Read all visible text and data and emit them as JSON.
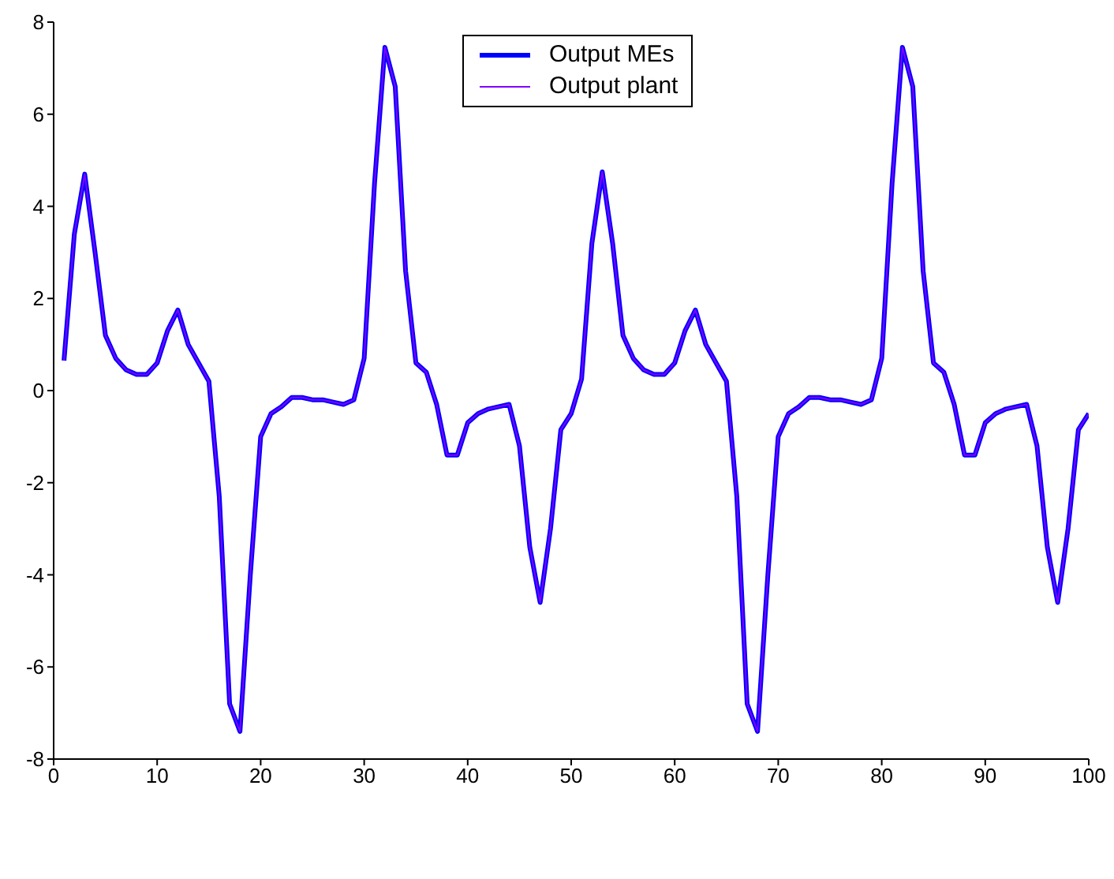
{
  "chart_data": {
    "type": "line",
    "x": [
      1,
      2,
      3,
      4,
      5,
      6,
      7,
      8,
      9,
      10,
      11,
      12,
      13,
      14,
      15,
      16,
      17,
      18,
      19,
      20,
      21,
      22,
      23,
      24,
      25,
      26,
      27,
      28,
      29,
      30,
      31,
      32,
      33,
      34,
      35,
      36,
      37,
      38,
      39,
      40,
      41,
      42,
      43,
      44,
      45,
      46,
      47,
      48,
      49,
      50,
      51,
      52,
      53,
      54,
      55,
      56,
      57,
      58,
      59,
      60,
      61,
      62,
      63,
      64,
      65,
      66,
      67,
      68,
      69,
      70,
      71,
      72,
      73,
      74,
      75,
      76,
      77,
      78,
      79,
      80,
      81,
      82,
      83,
      84,
      85,
      86,
      87,
      88,
      89,
      90,
      91,
      92,
      93,
      94,
      95,
      96,
      97,
      98,
      99,
      100
    ],
    "series": [
      {
        "name": "Output MEs",
        "color": "#0000ff",
        "values": [
          0.65,
          3.4,
          4.7,
          3.0,
          1.2,
          0.7,
          0.45,
          0.35,
          0.35,
          0.6,
          1.3,
          1.75,
          1.0,
          0.6,
          0.2,
          -2.3,
          -6.8,
          -7.4,
          -4.0,
          -1.0,
          -0.5,
          -0.35,
          -0.15,
          -0.15,
          -0.2,
          -0.2,
          -0.25,
          -0.3,
          -0.2,
          0.7,
          4.5,
          7.45,
          6.6,
          2.6,
          0.6,
          0.4,
          -0.3,
          -1.4,
          -1.4,
          -0.7,
          -0.5,
          -0.4,
          -0.35,
          -0.3,
          -1.2,
          -3.4,
          -4.6,
          -3.0,
          -0.85,
          -0.5,
          0.25,
          3.2,
          4.75,
          3.2,
          1.2,
          0.7,
          0.45,
          0.35,
          0.35,
          0.6,
          1.3,
          1.75,
          1.0,
          0.6,
          0.2,
          -2.3,
          -6.8,
          -7.4,
          -4.0,
          -1.0,
          -0.5,
          -0.35,
          -0.15,
          -0.15,
          -0.2,
          -0.2,
          -0.25,
          -0.3,
          -0.2,
          0.7,
          4.5,
          7.45,
          6.6,
          2.6,
          0.6,
          0.4,
          -0.3,
          -1.4,
          -1.4,
          -0.7,
          -0.5,
          -0.4,
          -0.35,
          -0.3,
          -1.2,
          -3.4,
          -4.6,
          -3.0,
          -0.85,
          -0.5
        ]
      },
      {
        "name": "Output plant",
        "color": "#8000ff",
        "values": [
          0.65,
          3.4,
          4.7,
          3.0,
          1.2,
          0.7,
          0.45,
          0.35,
          0.35,
          0.6,
          1.3,
          1.75,
          1.0,
          0.6,
          0.2,
          -2.3,
          -6.8,
          -7.4,
          -4.0,
          -1.0,
          -0.5,
          -0.35,
          -0.15,
          -0.15,
          -0.2,
          -0.2,
          -0.25,
          -0.3,
          -0.2,
          0.7,
          4.5,
          7.45,
          6.6,
          2.6,
          0.6,
          0.4,
          -0.3,
          -1.4,
          -1.4,
          -0.7,
          -0.5,
          -0.4,
          -0.35,
          -0.3,
          -1.2,
          -3.4,
          -4.6,
          -3.0,
          -0.85,
          -0.5,
          0.25,
          3.2,
          4.75,
          3.2,
          1.2,
          0.7,
          0.45,
          0.35,
          0.35,
          0.6,
          1.3,
          1.75,
          1.0,
          0.6,
          0.2,
          -2.3,
          -6.8,
          -7.4,
          -4.0,
          -1.0,
          -0.5,
          -0.35,
          -0.15,
          -0.15,
          -0.2,
          -0.2,
          -0.25,
          -0.3,
          -0.2,
          0.7,
          4.5,
          7.45,
          6.6,
          2.6,
          0.6,
          0.4,
          -0.3,
          -1.4,
          -1.4,
          -0.7,
          -0.5,
          -0.4,
          -0.35,
          -0.3,
          -1.2,
          -3.4,
          -4.6,
          -3.0,
          -0.85,
          -0.5
        ]
      }
    ],
    "xlim": [
      0,
      100
    ],
    "xticks": [
      0,
      10,
      20,
      30,
      40,
      50,
      60,
      70,
      80,
      90,
      100
    ],
    "ylim": [
      -8,
      8
    ],
    "yticks": [
      -8,
      -6,
      -4,
      -2,
      0,
      2,
      4,
      6,
      8
    ],
    "legend": "top"
  }
}
